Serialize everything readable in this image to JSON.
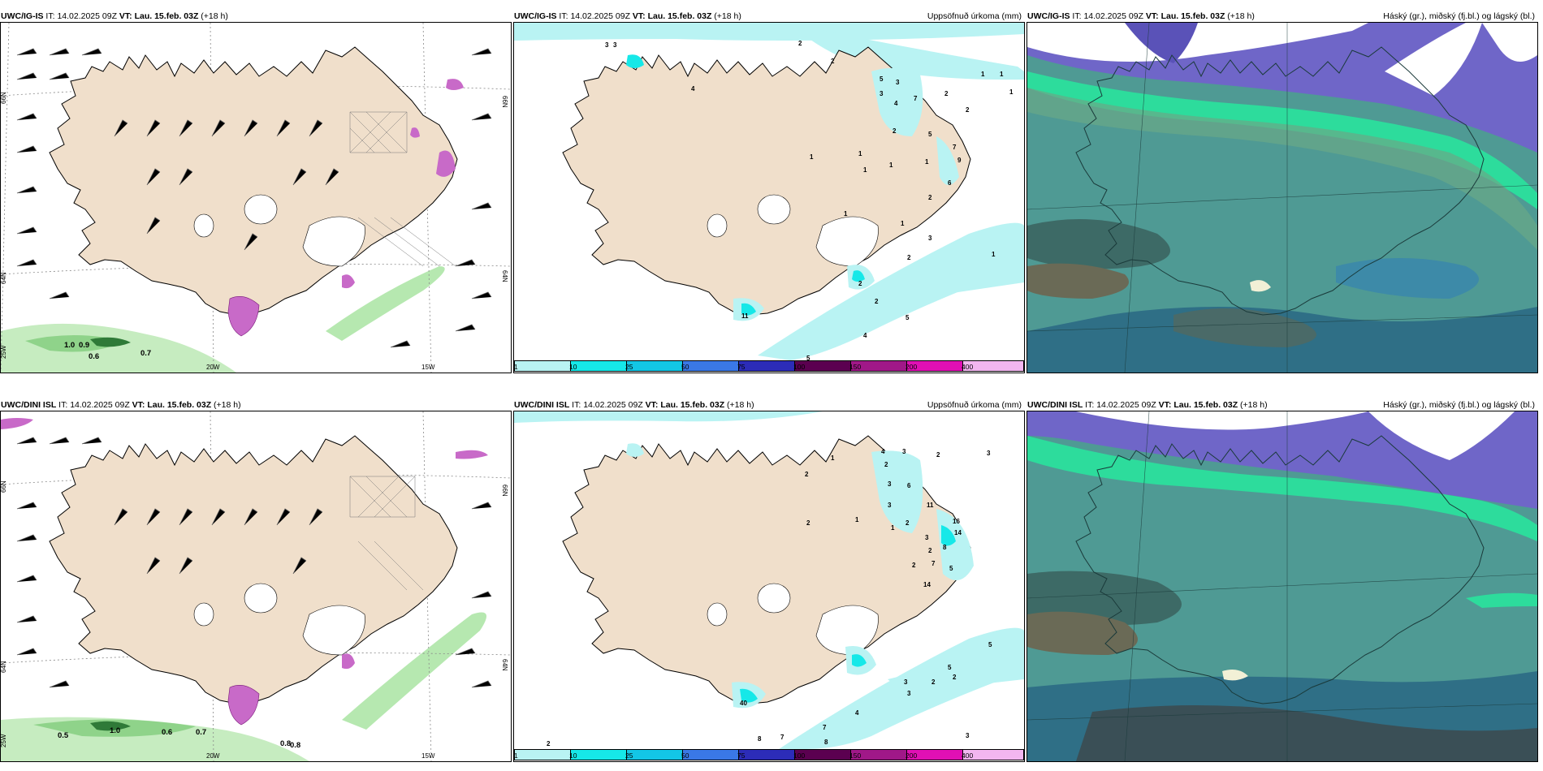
{
  "panels": [
    {
      "header_model": "UWC/IG-IS",
      "it_label": "IT:",
      "it_value": "14.02.2025 09Z",
      "vt_label": "VT:",
      "vt_value": "Lau. 15.feb. 03Z",
      "lead": "(+18 h)",
      "axis": {
        "lat_top": "66N",
        "lat_bottom": "64N",
        "lat_right_top": "66N",
        "lat_right_bottom": "64N",
        "lon_left": "25W",
        "lon_mid": "20W",
        "lon_right": "15W"
      },
      "green_values": [
        "1.0",
        "0.9",
        "0.6",
        "0.7"
      ]
    },
    {
      "header_model": "UWC/IG-IS",
      "it_label": "IT:",
      "it_value": "14.02.2025 09Z",
      "vt_label": "VT:",
      "vt_value": "Lau. 15.feb. 03Z",
      "lead": "(+18 h)",
      "title_right": "Uppsöfnuð úrkoma (mm)",
      "numbers": [
        "3",
        "3",
        "2",
        "2",
        "5",
        "3",
        "3",
        "4",
        "7",
        "2",
        "2",
        "1",
        "1",
        "1",
        "4",
        "2",
        "5",
        "7",
        "9",
        "1",
        "1",
        "1",
        "1",
        "1",
        "6",
        "2",
        "1",
        "3",
        "2",
        "1",
        "5",
        "2",
        "2",
        "4",
        "5",
        "11",
        "1"
      ]
    },
    {
      "header_model": "UWC/IG-IS",
      "it_label": "IT:",
      "it_value": "14.02.2025 09Z",
      "vt_label": "VT:",
      "vt_value": "Lau. 15.feb. 03Z",
      "lead": "(+18 h)",
      "title_right": "Háský (gr.), miðský (fj.bl.) og lágský (bl.)"
    },
    {
      "header_model": "UWC/DINI ISL",
      "it_label": "IT:",
      "it_value": "14.02.2025 09Z",
      "vt_label": "VT:",
      "vt_value": "Lau. 15.feb. 03Z",
      "lead": "(+18 h)",
      "axis": {
        "lat_top": "66N",
        "lat_bottom": "64N",
        "lat_right_top": "66N",
        "lat_right_bottom": "64N",
        "lon_left": "25W",
        "lon_mid": "20W",
        "lon_right": "15W"
      },
      "green_values": [
        "0.5",
        "1.0",
        "0.6",
        "0.7",
        "0.8",
        "0.8"
      ]
    },
    {
      "header_model": "UWC/DINI ISL",
      "it_label": "IT:",
      "it_value": "14.02.2025 09Z",
      "vt_label": "VT:",
      "vt_value": "Lau. 15.feb. 03Z",
      "lead": "(+18 h)",
      "title_right": "Uppsöfnuð úrkoma (mm)",
      "numbers": [
        "4",
        "3",
        "2",
        "3",
        "2",
        "3",
        "6",
        "11",
        "1",
        "2",
        "2",
        "1",
        "1",
        "2",
        "3",
        "16",
        "14",
        "3",
        "8",
        "2",
        "7",
        "5",
        "14",
        "2",
        "40",
        "8",
        "7",
        "3",
        "4",
        "7",
        "3",
        "2",
        "8",
        "5",
        "3",
        "2",
        "2",
        "5"
      ]
    },
    {
      "header_model": "UWC/DINI ISL",
      "it_label": "IT:",
      "it_value": "14.02.2025 09Z",
      "vt_label": "VT:",
      "vt_value": "Lau. 15.feb. 03Z",
      "lead": "(+18 h)",
      "title_right": "Háský (gr.), miðský (fj.bl.) og lágský (bl.)"
    }
  ],
  "colorbar": {
    "labels": [
      "1",
      "10",
      "25",
      "50",
      "75",
      "100",
      "150",
      "200",
      "400"
    ],
    "colors": [
      "#b9f3f3",
      "#16e8e8",
      "#13c6e6",
      "#3a78e6",
      "#2c2cb8",
      "#5b0050",
      "#a01888",
      "#e010b4",
      "#f2b6f0"
    ]
  },
  "colors": {
    "land": "#f0dfcb",
    "snow_white": "#ffffff",
    "ocean_cloud": "#5aa8a0",
    "precip_light": "#b9f3f3",
    "shower_magenta": "#c86ac8",
    "green_precip": "#b6e8b0"
  }
}
